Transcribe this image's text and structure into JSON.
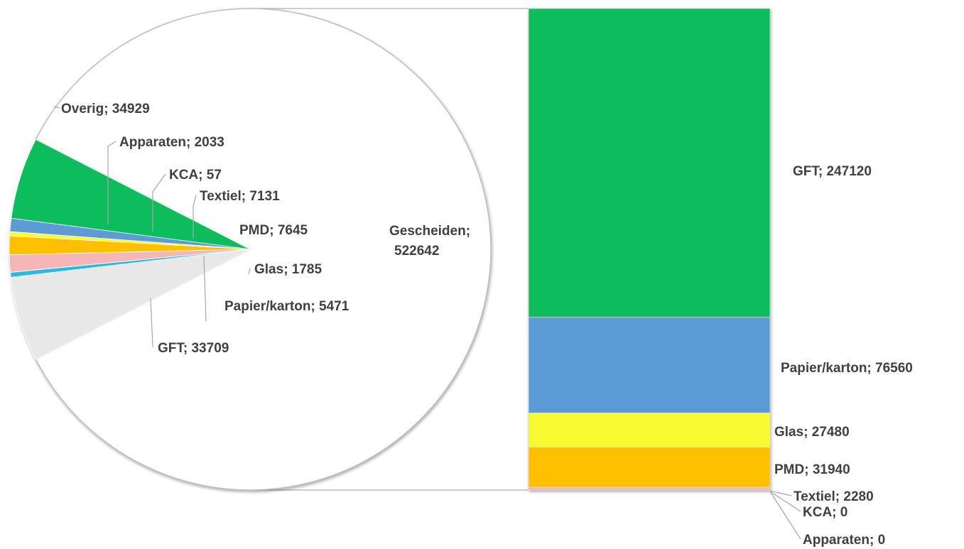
{
  "chart_data": {
    "type": "bar-of-pie",
    "pie": {
      "slices": [
        {
          "label": "Gescheiden",
          "value": 522642,
          "color": "#ffffff"
        },
        {
          "label": "GFT",
          "value": 33709,
          "color": "#0bbd5d"
        },
        {
          "label": "Papier/karton",
          "value": 5471,
          "color": "#5b9bd5"
        },
        {
          "label": "Glas",
          "value": 1785,
          "color": "#fafa32"
        },
        {
          "label": "PMD",
          "value": 7645,
          "color": "#ffc000"
        },
        {
          "label": "Textiel",
          "value": 7131,
          "color": "#f4b6b6"
        },
        {
          "label": "KCA",
          "value": 57,
          "color": "#7030a0"
        },
        {
          "label": "Apparaten",
          "value": 2033,
          "color": "#2bb9e5"
        },
        {
          "label": "Overig",
          "value": 34929,
          "color": "#e8e8e8"
        }
      ]
    },
    "bar": {
      "segments": [
        {
          "label": "GFT",
          "value": 247120,
          "color": "#0bbd5d"
        },
        {
          "label": "Papier/karton",
          "value": 76560,
          "color": "#5b9bd5"
        },
        {
          "label": "Glas",
          "value": 27480,
          "color": "#fafa32"
        },
        {
          "label": "PMD",
          "value": 31940,
          "color": "#ffc000"
        },
        {
          "label": "Textiel",
          "value": 2280,
          "color": "#f4b6b6"
        },
        {
          "label": "KCA",
          "value": 0,
          "color": "#7030a0"
        },
        {
          "label": "Apparaten",
          "value": 0,
          "color": "#2bb9e5"
        }
      ]
    },
    "legend": "none",
    "grid": false
  }
}
